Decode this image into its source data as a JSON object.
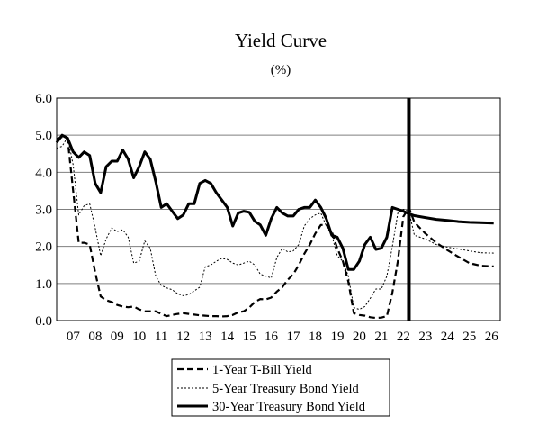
{
  "chart_data": {
    "type": "line",
    "title": "Yield Curve",
    "subtitle": "(%)",
    "xlabel": "",
    "ylabel": "",
    "xlim": [
      2006.75,
      2026.9
    ],
    "ylim": [
      0,
      6
    ],
    "y_ticks": [
      0,
      1,
      2,
      3,
      4,
      5,
      6
    ],
    "y_tick_labels": [
      "0.0",
      "1.0",
      "2.0",
      "3.0",
      "4.0",
      "5.0",
      "6.0"
    ],
    "x_tick_labels": [
      "07",
      "08",
      "09",
      "10",
      "11",
      "12",
      "13",
      "14",
      "15",
      "16",
      "17",
      "18",
      "19",
      "20",
      "21",
      "22",
      "23",
      "24",
      "25",
      "26"
    ],
    "grid": "horizontal",
    "legend_position": "bottom",
    "forecast_start": 2022.75,
    "series": [
      {
        "name": "1-Year T-Bill Yield",
        "style": "dashed",
        "color": "#000000",
        "points": [
          [
            2006.75,
            4.9
          ],
          [
            2007.0,
            4.95
          ],
          [
            2007.25,
            4.9
          ],
          [
            2007.5,
            3.5
          ],
          [
            2007.75,
            2.1
          ],
          [
            2008.0,
            2.1
          ],
          [
            2008.25,
            2.05
          ],
          [
            2008.5,
            1.3
          ],
          [
            2008.75,
            0.65
          ],
          [
            2009.0,
            0.55
          ],
          [
            2009.25,
            0.5
          ],
          [
            2009.5,
            0.42
          ],
          [
            2009.75,
            0.38
          ],
          [
            2010.0,
            0.36
          ],
          [
            2010.25,
            0.38
          ],
          [
            2010.5,
            0.3
          ],
          [
            2010.75,
            0.25
          ],
          [
            2011.0,
            0.25
          ],
          [
            2011.25,
            0.25
          ],
          [
            2011.5,
            0.18
          ],
          [
            2011.75,
            0.12
          ],
          [
            2012.0,
            0.15
          ],
          [
            2012.25,
            0.18
          ],
          [
            2012.5,
            0.2
          ],
          [
            2012.75,
            0.18
          ],
          [
            2013.0,
            0.16
          ],
          [
            2013.25,
            0.14
          ],
          [
            2013.5,
            0.13
          ],
          [
            2013.75,
            0.12
          ],
          [
            2014.0,
            0.12
          ],
          [
            2014.25,
            0.11
          ],
          [
            2014.5,
            0.12
          ],
          [
            2014.75,
            0.15
          ],
          [
            2015.0,
            0.22
          ],
          [
            2015.25,
            0.25
          ],
          [
            2015.5,
            0.35
          ],
          [
            2015.75,
            0.5
          ],
          [
            2016.0,
            0.58
          ],
          [
            2016.25,
            0.57
          ],
          [
            2016.5,
            0.62
          ],
          [
            2016.75,
            0.78
          ],
          [
            2017.0,
            0.9
          ],
          [
            2017.25,
            1.1
          ],
          [
            2017.5,
            1.25
          ],
          [
            2017.75,
            1.5
          ],
          [
            2018.0,
            1.8
          ],
          [
            2018.25,
            2.05
          ],
          [
            2018.5,
            2.35
          ],
          [
            2018.75,
            2.58
          ],
          [
            2019.0,
            2.58
          ],
          [
            2019.25,
            2.4
          ],
          [
            2019.5,
            1.95
          ],
          [
            2019.75,
            1.6
          ],
          [
            2020.0,
            1.05
          ],
          [
            2020.25,
            0.2
          ],
          [
            2020.5,
            0.15
          ],
          [
            2020.75,
            0.13
          ],
          [
            2021.0,
            0.09
          ],
          [
            2021.25,
            0.07
          ],
          [
            2021.5,
            0.08
          ],
          [
            2021.75,
            0.12
          ],
          [
            2022.0,
            0.75
          ],
          [
            2022.25,
            1.6
          ],
          [
            2022.5,
            2.8
          ],
          [
            2022.75,
            3.05
          ],
          [
            2023.0,
            2.65
          ],
          [
            2023.5,
            2.35
          ],
          [
            2024.0,
            2.1
          ],
          [
            2024.5,
            1.9
          ],
          [
            2025.0,
            1.72
          ],
          [
            2025.5,
            1.55
          ],
          [
            2026.0,
            1.48
          ],
          [
            2026.6,
            1.46
          ]
        ]
      },
      {
        "name": "5-Year Treasury Bond Yield",
        "style": "dotted",
        "color": "#000000",
        "points": [
          [
            2006.75,
            4.65
          ],
          [
            2007.0,
            4.7
          ],
          [
            2007.25,
            4.95
          ],
          [
            2007.5,
            4.2
          ],
          [
            2007.75,
            2.85
          ],
          [
            2008.0,
            3.1
          ],
          [
            2008.25,
            3.15
          ],
          [
            2008.5,
            2.5
          ],
          [
            2008.75,
            1.75
          ],
          [
            2009.0,
            2.2
          ],
          [
            2009.25,
            2.5
          ],
          [
            2009.5,
            2.4
          ],
          [
            2009.75,
            2.45
          ],
          [
            2010.0,
            2.25
          ],
          [
            2010.25,
            1.55
          ],
          [
            2010.5,
            1.6
          ],
          [
            2010.75,
            2.15
          ],
          [
            2011.0,
            1.95
          ],
          [
            2011.25,
            1.2
          ],
          [
            2011.5,
            0.95
          ],
          [
            2011.75,
            0.88
          ],
          [
            2012.0,
            0.83
          ],
          [
            2012.25,
            0.72
          ],
          [
            2012.5,
            0.67
          ],
          [
            2012.75,
            0.7
          ],
          [
            2013.0,
            0.8
          ],
          [
            2013.25,
            0.9
          ],
          [
            2013.5,
            1.45
          ],
          [
            2013.75,
            1.5
          ],
          [
            2014.0,
            1.6
          ],
          [
            2014.25,
            1.68
          ],
          [
            2014.5,
            1.65
          ],
          [
            2014.75,
            1.55
          ],
          [
            2015.0,
            1.5
          ],
          [
            2015.25,
            1.55
          ],
          [
            2015.5,
            1.6
          ],
          [
            2015.75,
            1.5
          ],
          [
            2016.0,
            1.25
          ],
          [
            2016.25,
            1.2
          ],
          [
            2016.5,
            1.15
          ],
          [
            2016.75,
            1.7
          ],
          [
            2017.0,
            1.95
          ],
          [
            2017.25,
            1.85
          ],
          [
            2017.5,
            1.88
          ],
          [
            2017.75,
            2.05
          ],
          [
            2018.0,
            2.55
          ],
          [
            2018.25,
            2.75
          ],
          [
            2018.5,
            2.85
          ],
          [
            2018.75,
            2.9
          ],
          [
            2019.0,
            2.55
          ],
          [
            2019.25,
            2.3
          ],
          [
            2019.5,
            1.75
          ],
          [
            2019.75,
            1.6
          ],
          [
            2020.0,
            1.2
          ],
          [
            2020.25,
            0.35
          ],
          [
            2020.5,
            0.3
          ],
          [
            2020.75,
            0.38
          ],
          [
            2021.0,
            0.6
          ],
          [
            2021.25,
            0.85
          ],
          [
            2021.5,
            0.85
          ],
          [
            2021.75,
            1.2
          ],
          [
            2022.0,
            2.0
          ],
          [
            2022.25,
            2.9
          ],
          [
            2022.5,
            3.0
          ],
          [
            2022.75,
            2.95
          ],
          [
            2023.0,
            2.3
          ],
          [
            2023.5,
            2.2
          ],
          [
            2024.0,
            2.05
          ],
          [
            2024.5,
            1.98
          ],
          [
            2025.0,
            1.93
          ],
          [
            2025.5,
            1.88
          ],
          [
            2026.0,
            1.83
          ],
          [
            2026.6,
            1.82
          ]
        ]
      },
      {
        "name": "30-Year Treasury Bond Yield",
        "style": "solid",
        "color": "#000000",
        "points": [
          [
            2006.75,
            4.8
          ],
          [
            2007.0,
            5.0
          ],
          [
            2007.25,
            4.92
          ],
          [
            2007.5,
            4.55
          ],
          [
            2007.75,
            4.4
          ],
          [
            2008.0,
            4.55
          ],
          [
            2008.25,
            4.45
          ],
          [
            2008.5,
            3.7
          ],
          [
            2008.75,
            3.45
          ],
          [
            2009.0,
            4.15
          ],
          [
            2009.25,
            4.3
          ],
          [
            2009.5,
            4.3
          ],
          [
            2009.75,
            4.6
          ],
          [
            2010.0,
            4.35
          ],
          [
            2010.25,
            3.85
          ],
          [
            2010.5,
            4.15
          ],
          [
            2010.75,
            4.55
          ],
          [
            2011.0,
            4.35
          ],
          [
            2011.25,
            3.75
          ],
          [
            2011.5,
            3.05
          ],
          [
            2011.75,
            3.15
          ],
          [
            2012.0,
            2.95
          ],
          [
            2012.25,
            2.75
          ],
          [
            2012.5,
            2.85
          ],
          [
            2012.75,
            3.15
          ],
          [
            2013.0,
            3.15
          ],
          [
            2013.25,
            3.7
          ],
          [
            2013.5,
            3.78
          ],
          [
            2013.75,
            3.7
          ],
          [
            2014.0,
            3.45
          ],
          [
            2014.25,
            3.25
          ],
          [
            2014.5,
            3.05
          ],
          [
            2014.75,
            2.55
          ],
          [
            2015.0,
            2.9
          ],
          [
            2015.25,
            2.95
          ],
          [
            2015.5,
            2.92
          ],
          [
            2015.75,
            2.68
          ],
          [
            2016.0,
            2.58
          ],
          [
            2016.25,
            2.3
          ],
          [
            2016.5,
            2.75
          ],
          [
            2016.75,
            3.05
          ],
          [
            2017.0,
            2.9
          ],
          [
            2017.25,
            2.82
          ],
          [
            2017.5,
            2.82
          ],
          [
            2017.75,
            3.0
          ],
          [
            2018.0,
            3.05
          ],
          [
            2018.25,
            3.05
          ],
          [
            2018.5,
            3.25
          ],
          [
            2018.75,
            3.05
          ],
          [
            2019.0,
            2.75
          ],
          [
            2019.25,
            2.3
          ],
          [
            2019.5,
            2.25
          ],
          [
            2019.75,
            1.95
          ],
          [
            2020.0,
            1.38
          ],
          [
            2020.25,
            1.38
          ],
          [
            2020.5,
            1.6
          ],
          [
            2020.75,
            2.05
          ],
          [
            2021.0,
            2.25
          ],
          [
            2021.25,
            1.92
          ],
          [
            2021.5,
            1.95
          ],
          [
            2021.75,
            2.25
          ],
          [
            2022.0,
            3.05
          ],
          [
            2022.25,
            3.0
          ],
          [
            2022.5,
            2.95
          ],
          [
            2022.75,
            2.88
          ],
          [
            2023.0,
            2.83
          ],
          [
            2023.5,
            2.78
          ],
          [
            2024.0,
            2.73
          ],
          [
            2024.5,
            2.7
          ],
          [
            2025.0,
            2.67
          ],
          [
            2025.5,
            2.65
          ],
          [
            2026.0,
            2.64
          ],
          [
            2026.6,
            2.63
          ]
        ]
      }
    ]
  }
}
